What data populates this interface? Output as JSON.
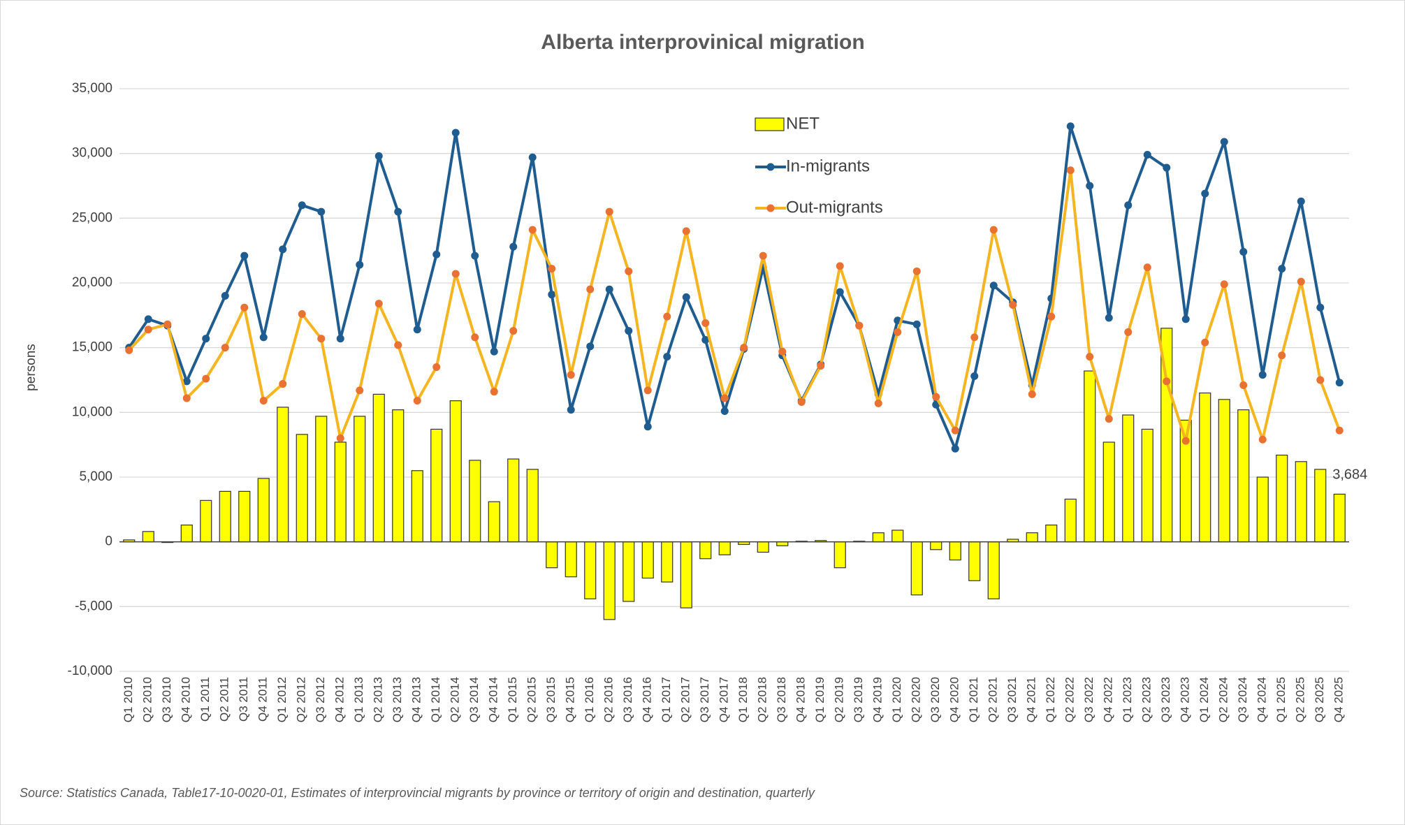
{
  "chart_data": {
    "type": "bar",
    "title": "Alberta interprovinical migration",
    "y_label": "persons",
    "source": "Source: Statistics Canada, Table17-10-0020-01, Estimates of interprovincial migrants by province or territory of origin and destination, quarterly",
    "categories": [
      "Q1 2010",
      "Q2 2010",
      "Q3 2010",
      "Q4 2010",
      "Q1 2011",
      "Q2 2011",
      "Q3 2011",
      "Q4 2011",
      "Q1 2012",
      "Q2 2012",
      "Q3 2012",
      "Q4 2012",
      "Q1 2013",
      "Q2 2013",
      "Q3 2013",
      "Q4 2013",
      "Q1 2014",
      "Q2 2014",
      "Q3 2014",
      "Q4 2014",
      "Q1 2015",
      "Q2 2015",
      "Q3 2015",
      "Q4 2015",
      "Q1 2016",
      "Q2 2016",
      "Q3 2016",
      "Q4 2016",
      "Q1 2017",
      "Q2 2017",
      "Q3 2017",
      "Q4 2017",
      "Q1 2018",
      "Q2 2018",
      "Q3 2018",
      "Q4 2018",
      "Q1 2019",
      "Q2 2019",
      "Q3 2019",
      "Q4 2019",
      "Q1 2020",
      "Q2 2020",
      "Q3 2020",
      "Q4 2020",
      "Q1 2021",
      "Q2 2021",
      "Q3 2021",
      "Q4 2021",
      "Q1 2022",
      "Q2 2022",
      "Q3 2022",
      "Q4 2022",
      "Q1 2023",
      "Q2 2023",
      "Q3 2023",
      "Q4 2023",
      "Q1 2024",
      "Q2 2024",
      "Q3 2024",
      "Q4 2024",
      "Q1 2025",
      "Q2 2025",
      "Q3 2025",
      "Q4 2025"
    ],
    "series": [
      {
        "name": "NET",
        "type": "bar",
        "color": "#ffff00",
        "stroke": "#333333",
        "values": [
          150,
          800,
          -50,
          1300,
          3200,
          3900,
          3900,
          4900,
          10400,
          8300,
          9700,
          7700,
          9700,
          11400,
          10200,
          5500,
          8700,
          10900,
          6300,
          3100,
          6400,
          5600,
          -2000,
          -2700,
          -4400,
          -6000,
          -4600,
          -2800,
          -3100,
          -5100,
          -1300,
          -1000,
          -200,
          -800,
          -300,
          50,
          100,
          -2000,
          50,
          700,
          900,
          -4100,
          -600,
          -1400,
          -3000,
          -4400,
          200,
          700,
          1300,
          3300,
          13200,
          7700,
          9800,
          8700,
          16500,
          9400,
          11500,
          11000,
          10200,
          5000,
          6700,
          6200,
          5600,
          3684
        ],
        "value_labels": [
          null,
          null,
          null,
          null,
          null,
          null,
          null,
          null,
          null,
          null,
          null,
          null,
          null,
          null,
          null,
          null,
          null,
          null,
          null,
          null,
          null,
          null,
          null,
          null,
          null,
          null,
          null,
          null,
          null,
          null,
          null,
          null,
          null,
          null,
          null,
          null,
          null,
          null,
          null,
          null,
          null,
          null,
          null,
          null,
          null,
          null,
          null,
          null,
          null,
          null,
          null,
          null,
          null,
          null,
          null,
          null,
          null,
          null,
          null,
          null,
          null,
          null,
          null,
          "3,684"
        ]
      },
      {
        "name": "In-migrants",
        "type": "line",
        "color": "#1f5c8f",
        "marker_color": "#1f5c8f",
        "values": [
          15000,
          17200,
          16700,
          12400,
          15700,
          19000,
          22100,
          15800,
          22600,
          26000,
          25500,
          15700,
          21400,
          29800,
          25500,
          16400,
          22200,
          31600,
          22100,
          14700,
          22800,
          29700,
          19100,
          10200,
          15100,
          19500,
          16300,
          8900,
          14300,
          18900,
          15600,
          10100,
          14900,
          21200,
          14400,
          10900,
          13700,
          19300,
          16700,
          11400,
          17100,
          16800,
          10600,
          7200,
          12800,
          19800,
          18500,
          12100,
          18800,
          32100,
          27500,
          17300,
          26000,
          29900,
          28900,
          17200,
          26900,
          30900,
          22400,
          12900,
          21100,
          26300,
          18100,
          12300
        ]
      },
      {
        "name": "Out-migrants",
        "type": "line",
        "color": "#f5b520",
        "marker_color": "#e97132",
        "values": [
          14800,
          16400,
          16800,
          11100,
          12600,
          15000,
          18100,
          10900,
          12200,
          17600,
          15700,
          8000,
          11700,
          18400,
          15200,
          10900,
          13500,
          20700,
          15800,
          11600,
          16300,
          24100,
          21100,
          12900,
          19500,
          25500,
          20900,
          11700,
          17400,
          24000,
          16900,
          11100,
          15000,
          22100,
          14700,
          10800,
          13600,
          21300,
          16700,
          10700,
          16200,
          20900,
          11200,
          8600,
          15800,
          24100,
          18300,
          11400,
          17400,
          28700,
          14300,
          9500,
          16200,
          21200,
          12400,
          7800,
          15400,
          19900,
          12100,
          7900,
          14400,
          20100,
          12500,
          8600
        ]
      }
    ],
    "ylim": [
      -10000,
      35000
    ],
    "yticks": [
      {
        "value": -10000,
        "label": "-10,000"
      },
      {
        "value": -5000,
        "label": "-5,000"
      },
      0,
      {
        "value": 5000,
        "label": "5,000"
      },
      {
        "value": 10000,
        "label": "10,000"
      },
      {
        "value": 15000,
        "label": "15,000"
      },
      {
        "value": 20000,
        "label": "20,000"
      },
      {
        "value": 25000,
        "label": "25,000"
      },
      {
        "value": 30000,
        "label": "30,000"
      },
      {
        "value": 35000,
        "label": "35,000"
      }
    ],
    "grid": true,
    "legend": "top"
  }
}
